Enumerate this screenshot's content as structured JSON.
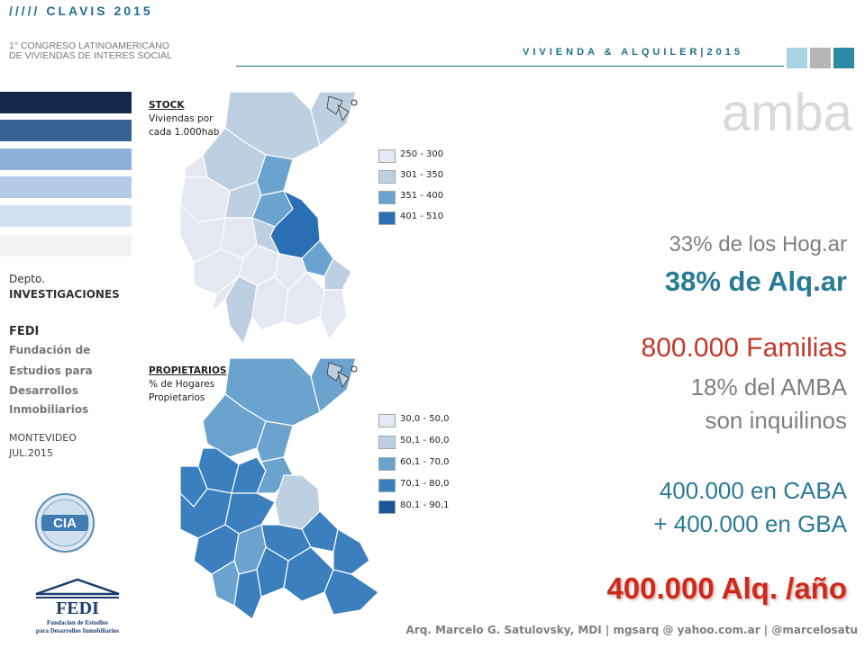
{
  "header": {
    "brand": "///// CLAVIS 2015",
    "subtitle_line1": "1° CONGRESO LATINOAMERICANO",
    "subtitle_line2": "DE VIVIENDAS DE INTERES SOCIAL",
    "tagline": "VIVIENDA & ALQUILER|2015",
    "squares": [
      "#a9d4e6",
      "#b5b5b5",
      "#2b8aa4"
    ]
  },
  "sidebar": {
    "bars": [
      "#13294b",
      "#356294",
      "#8fb0d8",
      "#b4cbe8",
      "#d6e2f2",
      "#f2f2f2"
    ],
    "dept_label": "Depto.",
    "dept_name": "INVESTIGACIONES",
    "org_abbr": "FEDI",
    "org_line1": "Fundación de",
    "org_line2": "Estudios para",
    "org_line3": "Desarrollos",
    "org_line4": "Inmobiliarios",
    "city": "MONTEVIDEO",
    "date": "JUL.2015",
    "logo_cia": "CIA",
    "logo_fedi": "FEDI",
    "logo_fedi_sub1": "Fundacion de Estudios",
    "logo_fedi_sub2": "para Desarrollos Inmobiliarios"
  },
  "map_stock": {
    "title": "STOCK",
    "desc1": "Viviendas por",
    "desc2": "cada 1.000hab.",
    "legend": [
      {
        "label": "250 - 300",
        "color": "#e4e8f0"
      },
      {
        "label": "301 - 350",
        "color": "#bdd0e2"
      },
      {
        "label": "351 - 400",
        "color": "#6aa3cd"
      },
      {
        "label": "401 - 510",
        "color": "#2a6eb3"
      }
    ]
  },
  "map_prop": {
    "title": "PROPIETARIOS",
    "desc1": "% de Hogares",
    "desc2": "Propietarios",
    "legend": [
      {
        "label": "30,0 - 50,0",
        "color": "#e4e8f0"
      },
      {
        "label": "50,1 - 60,0",
        "color": "#bdd0e2"
      },
      {
        "label": "60,1 - 70,0",
        "color": "#6aa3cd"
      },
      {
        "label": "70,1 - 80,0",
        "color": "#3b7fbf"
      },
      {
        "label": "80,1 - 90,1",
        "color": "#1d5398"
      }
    ]
  },
  "right": {
    "title": "amba",
    "l1": "33% de los Hog.ar",
    "l2": "38%  de  Alq.ar",
    "l3": "800.000 Familias",
    "l4": "18% del AMBA",
    "l5": "son inquilinos",
    "l6": "400.000 en CABA",
    "l7": "+  400.000 en   GBA",
    "l8": "400.000 Alq. /año"
  },
  "footer": {
    "text": "Arq. Marcelo G. Satulovsky, MDI  |  mgsarq @ yahoo.com.ar  |  @marcelosatu"
  }
}
